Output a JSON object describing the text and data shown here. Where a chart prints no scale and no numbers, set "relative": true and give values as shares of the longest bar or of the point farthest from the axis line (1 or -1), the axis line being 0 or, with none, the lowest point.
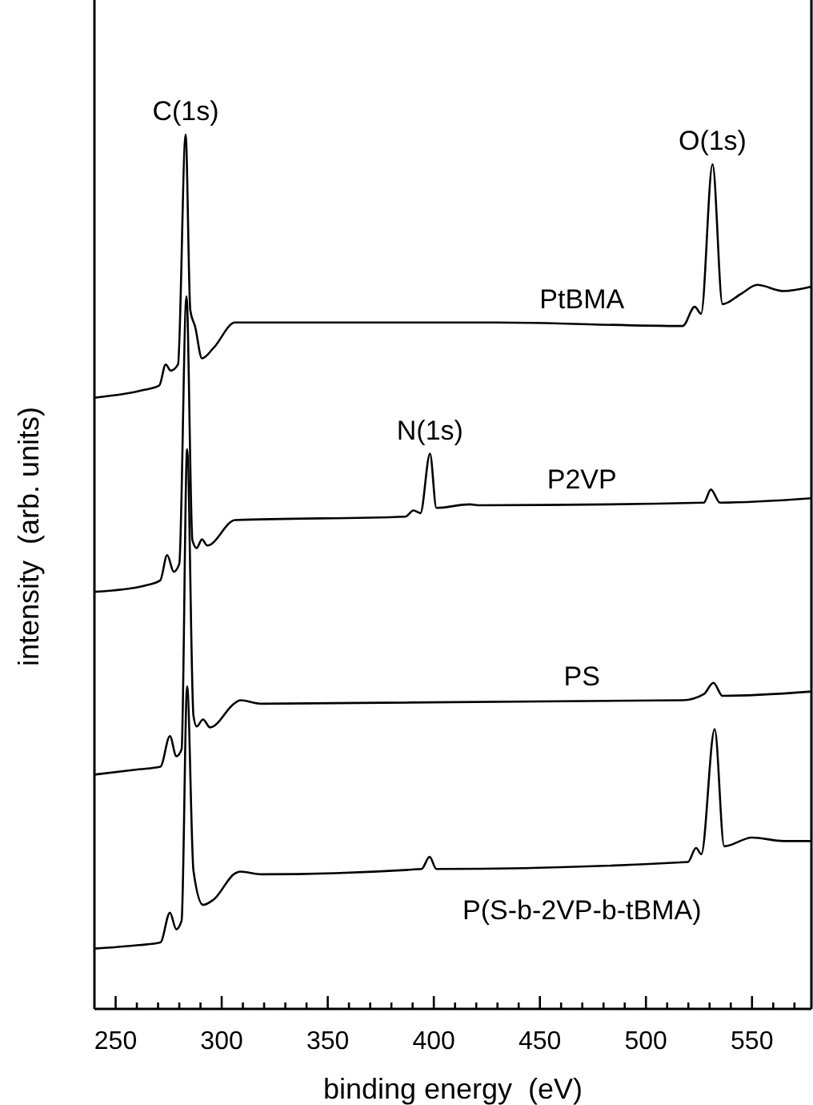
{
  "chart_data": {
    "type": "line",
    "relative": true,
    "xlabel": "binding energy  (eV)",
    "ylabel": "intensity  (arb. units)",
    "xlim": [
      240,
      578
    ],
    "xticks": [
      250,
      {
        "value": 260,
        "label": null
      },
      {
        "value": 270,
        "label": null
      },
      {
        "value": 280,
        "label": null
      },
      {
        "value": 290,
        "label": null
      },
      300,
      {
        "value": 310,
        "label": null
      },
      {
        "value": 320,
        "label": null
      },
      {
        "value": 330,
        "label": null
      },
      {
        "value": 340,
        "label": null
      },
      350,
      {
        "value": 360,
        "label": null
      },
      {
        "value": 370,
        "label": null
      },
      {
        "value": 380,
        "label": null
      },
      {
        "value": 390,
        "label": null
      },
      400,
      {
        "value": 410,
        "label": null
      },
      {
        "value": 420,
        "label": null
      },
      {
        "value": 430,
        "label": null
      },
      {
        "value": 440,
        "label": null
      },
      450,
      {
        "value": 460,
        "label": null
      },
      {
        "value": 470,
        "label": null
      },
      {
        "value": 480,
        "label": null
      },
      {
        "value": 490,
        "label": null
      },
      500,
      {
        "value": 510,
        "label": null
      },
      {
        "value": 520,
        "label": null
      },
      {
        "value": 530,
        "label": null
      },
      {
        "value": 540,
        "label": null
      },
      550,
      {
        "value": 560,
        "label": null
      },
      {
        "value": 570,
        "label": null
      }
    ],
    "marker": "none",
    "line_style": "solid",
    "series": [
      {
        "name": "PtBMA",
        "color": "#000000",
        "x": [
          240,
          263.6,
          270.6,
          273.6,
          276,
          279.4,
          283,
          285.2,
          287.5,
          290.7,
          296.2,
          306.3,
          429,
          517.3,
          523,
          526,
          531.4,
          536.1,
          545,
          552.4,
          565,
          578
        ],
        "values": [
          0.699,
          0.708,
          0.713,
          0.737,
          0.73,
          0.737,
          1,
          0.799,
          0.78,
          0.744,
          0.756,
          0.785,
          0.785,
          0.781,
          0.803,
          0.795,
          0.966,
          0.806,
          0.818,
          0.828,
          0.821,
          0.826
        ]
      },
      {
        "name": "P2VP",
        "color": "#000000",
        "x": [
          240,
          263.6,
          271,
          274.3,
          277.4,
          280,
          283.4,
          286.2,
          288.2,
          290.7,
          293.2,
          306.3,
          386.6,
          390.4,
          393.7,
          398.2,
          401.2,
          416.8,
          421.8,
          527.3,
          530.6,
          534.9,
          578
        ],
        "values": [
          0.477,
          0.484,
          0.49,
          0.519,
          0.5,
          0.509,
          0.815,
          0.536,
          0.527,
          0.537,
          0.53,
          0.559,
          0.563,
          0.57,
          0.567,
          0.635,
          0.573,
          0.577,
          0.576,
          0.579,
          0.594,
          0.579,
          0.584
        ]
      },
      {
        "name": "PS",
        "color": "#000000",
        "x": [
          240,
          261,
          271.1,
          275.6,
          278.6,
          281.1,
          283.7,
          286.7,
          288.2,
          291.2,
          294.5,
          306.3,
          308.8,
          318.8,
          517.3,
          527.3,
          531.8,
          536.1,
          578
        ],
        "values": [
          0.268,
          0.274,
          0.277,
          0.312,
          0.289,
          0.297,
          0.64,
          0.335,
          0.323,
          0.331,
          0.322,
          0.35,
          0.353,
          0.349,
          0.353,
          0.36,
          0.373,
          0.358,
          0.363
        ]
      },
      {
        "name": "P(S-b-2VP-b-tBMA)",
        "color": "#000000",
        "x": [
          240,
          261,
          271.1,
          275.6,
          278.6,
          281.1,
          283.7,
          286.7,
          291.2,
          296.2,
          306.3,
          308.8,
          318.8,
          394.2,
          398,
          401.2,
          519.8,
          523.6,
          526.1,
          532.4,
          536.9,
          550,
          565,
          578
        ],
        "values": [
          0.069,
          0.073,
          0.076,
          0.11,
          0.091,
          0.101,
          0.369,
          0.158,
          0.119,
          0.125,
          0.155,
          0.157,
          0.154,
          0.16,
          0.174,
          0.16,
          0.168,
          0.184,
          0.177,
          0.32,
          0.186,
          0.196,
          0.192,
          0.192
        ]
      }
    ],
    "annotations": [
      {
        "text": "C(1s)",
        "x": 283,
        "y": 1
      },
      {
        "text": "N(1s)",
        "x": 398.2,
        "y": 0.635
      },
      {
        "text": "O(1s)",
        "x": 531.4,
        "y": 0.966
      }
    ]
  }
}
